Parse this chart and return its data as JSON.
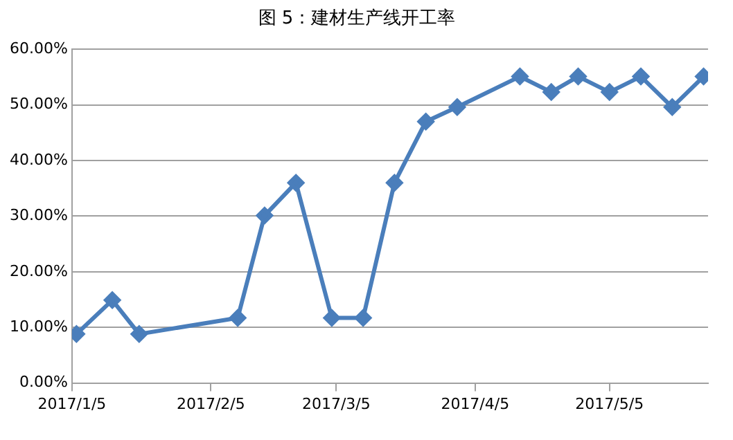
{
  "chart_data": {
    "type": "line",
    "title": "图 5：建材生产线开工率",
    "x": [
      "2017-01-06",
      "2017-01-14",
      "2017-01-20",
      "2017-02-11",
      "2017-02-17",
      "2017-02-24",
      "2017-03-04",
      "2017-03-11",
      "2017-03-18",
      "2017-03-25",
      "2017-04-01",
      "2017-04-15",
      "2017-04-22",
      "2017-04-28",
      "2017-05-05",
      "2017-05-12",
      "2017-05-19",
      "2017-05-26"
    ],
    "series": [
      {
        "color": "#4a7ebb",
        "values": [
          8.8,
          14.9,
          8.8,
          11.7,
          30.1,
          36.0,
          11.7,
          11.7,
          36.0,
          47.0,
          49.6,
          55.1,
          52.3,
          55.1,
          52.3,
          55.1,
          49.6,
          55.1
        ]
      }
    ],
    "xlim": [
      "2017-01-05",
      "2017-05-27"
    ],
    "xticks": [
      {
        "value": "2017-01-05",
        "label": "2017/1/5"
      },
      {
        "value": "2017-02-05",
        "label": "2017/2/5"
      },
      {
        "value": "2017-03-05",
        "label": "2017/3/5"
      },
      {
        "value": "2017-04-05",
        "label": "2017/4/5"
      },
      {
        "value": "2017-05-05",
        "label": "2017/5/5"
      }
    ],
    "ylim": [
      0,
      60
    ],
    "yticks": [
      {
        "value": 0,
        "label": "0.00%"
      },
      {
        "value": 10,
        "label": "10.00%"
      },
      {
        "value": 20,
        "label": "20.00%"
      },
      {
        "value": 30,
        "label": "30.00%"
      },
      {
        "value": 40,
        "label": "40.00%"
      },
      {
        "value": 50,
        "label": "50.00%"
      },
      {
        "value": 60,
        "label": "60.00%"
      }
    ],
    "grid": "y",
    "legend": false,
    "marker": "diamond",
    "line_style": "solid"
  }
}
